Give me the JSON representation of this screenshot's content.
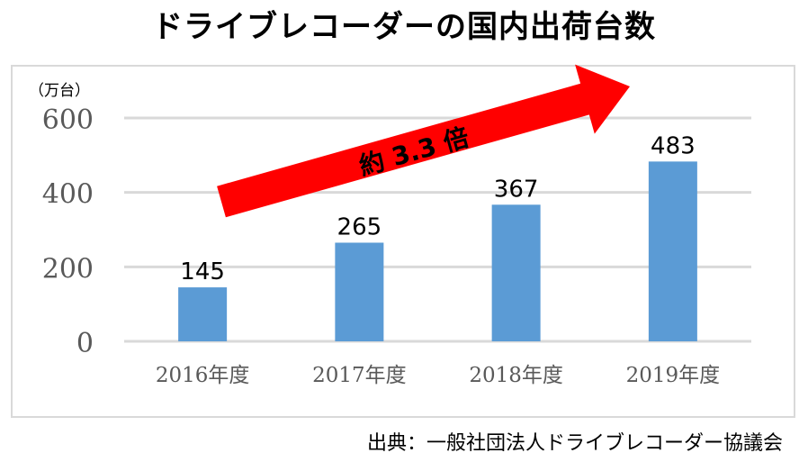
{
  "title": "ドライブレコーダーの国内出荷台数",
  "source": "出典：一般社団法人ドライブレコーダー協議会",
  "annotation": "約 3.3 倍",
  "colors": {
    "bar": "#5b9bd5",
    "arrow": "#ff0000",
    "grid": "#d9d9d9"
  },
  "chart_data": {
    "type": "bar",
    "title": "ドライブレコーダーの国内出荷台数",
    "ylabel": "（万台）",
    "xlabel": "",
    "categories": [
      "2016年度",
      "2017年度",
      "2018年度",
      "2019年度"
    ],
    "values": [
      145,
      265,
      367,
      483
    ],
    "ylim": [
      0,
      600
    ],
    "yticks": [
      0,
      200,
      400,
      600
    ],
    "grid": true,
    "legend": "none"
  }
}
